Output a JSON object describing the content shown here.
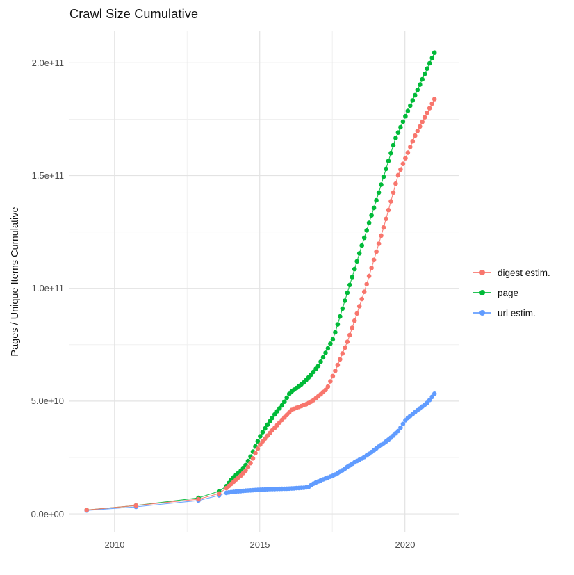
{
  "title": "Crawl Size Cumulative",
  "axes": {
    "y": {
      "title": "Pages / Unique Items Cumulative",
      "ticks": [
        {
          "label": "0.0e+00",
          "value_e9": 0
        },
        {
          "label": "5.0e+10",
          "value_e9": 50
        },
        {
          "label": "1.0e+11",
          "value_e9": 100
        },
        {
          "label": "1.5e+11",
          "value_e9": 150
        },
        {
          "label": "2.0e+11",
          "value_e9": 200
        }
      ],
      "minor_values_e9": [
        25,
        75,
        125,
        175
      ],
      "range_e9": [
        -8,
        214
      ]
    },
    "x": {
      "ticks": [
        {
          "label": "2010",
          "year": 2010
        },
        {
          "label": "2015",
          "year": 2015
        },
        {
          "label": "2020",
          "year": 2020
        }
      ],
      "minor_years": [
        2012.5,
        2017.5
      ],
      "range_year": [
        2008.45,
        2021.85
      ]
    }
  },
  "legend": {
    "items": [
      {
        "label": "digest estim.",
        "series": "digest-estim",
        "color": "#F8766D"
      },
      {
        "label": "page",
        "series": "page",
        "color": "#00BA38"
      },
      {
        "label": "url estim.",
        "series": "url-estim",
        "color": "#619CFF"
      }
    ]
  },
  "colors": {
    "digest": "#F8766D",
    "page": "#00BA38",
    "url": "#619CFF",
    "grid_major": "#e3e3e3",
    "grid_minor": "#f0f0f0",
    "tick_text": "#4d4d4d",
    "text": "#111111"
  },
  "chart_data": {
    "type": "scatter",
    "note": "cumulative pages / unique items; values in billions (1e9); dots monthly from 2013.85, knots are pixel-read anchor points",
    "x_unit": "year",
    "y_unit": "items (value x 1e9)",
    "monthly_step_years": 0.08333,
    "series": [
      {
        "name": "page",
        "color": "#00BA38",
        "z": 1,
        "dense_from_year": 2013.85,
        "knots": [
          [
            2009.04,
            1.7
          ],
          [
            2010.74,
            3.7
          ],
          [
            2012.89,
            7.1
          ],
          [
            2013.6,
            10.0
          ],
          [
            2013.85,
            12.3
          ],
          [
            2014.04,
            15.4
          ],
          [
            2014.21,
            17.6
          ],
          [
            2014.37,
            19.4
          ],
          [
            2014.54,
            22.0
          ],
          [
            2014.71,
            26.0
          ],
          [
            2014.87,
            30.5
          ],
          [
            2015.04,
            35.0
          ],
          [
            2015.29,
            40.0
          ],
          [
            2015.54,
            44.5
          ],
          [
            2015.79,
            48.5
          ],
          [
            2016.04,
            53.7
          ],
          [
            2016.29,
            56.0
          ],
          [
            2016.54,
            58.5
          ],
          [
            2016.79,
            62.0
          ],
          [
            2017.04,
            66.0
          ],
          [
            2017.29,
            72.0
          ],
          [
            2017.54,
            78.0
          ],
          [
            2018.04,
            99.0
          ],
          [
            2018.54,
            120.0
          ],
          [
            2019.04,
            140.0
          ],
          [
            2019.66,
            166.0
          ],
          [
            2020.04,
            177.0
          ],
          [
            2020.54,
            191.0
          ],
          [
            2021.05,
            205.5
          ]
        ]
      },
      {
        "name": "url estim.",
        "color": "#619CFF",
        "z": 2,
        "dense_from_year": 2013.85,
        "knots": [
          [
            2009.04,
            1.5
          ],
          [
            2010.74,
            3.1
          ],
          [
            2012.89,
            5.9
          ],
          [
            2013.6,
            8.2
          ],
          [
            2013.85,
            9.3
          ],
          [
            2014.04,
            9.7
          ],
          [
            2014.29,
            10.0
          ],
          [
            2014.54,
            10.3
          ],
          [
            2014.79,
            10.5
          ],
          [
            2015.04,
            10.7
          ],
          [
            2015.29,
            10.9
          ],
          [
            2015.54,
            11.0
          ],
          [
            2015.79,
            11.1
          ],
          [
            2016.04,
            11.2
          ],
          [
            2016.29,
            11.4
          ],
          [
            2016.54,
            11.6
          ],
          [
            2016.71,
            12.0
          ],
          [
            2016.79,
            13.0
          ],
          [
            2017.04,
            14.5
          ],
          [
            2017.29,
            15.8
          ],
          [
            2017.54,
            17.0
          ],
          [
            2017.79,
            18.8
          ],
          [
            2018.04,
            21.0
          ],
          [
            2018.29,
            23.0
          ],
          [
            2018.54,
            24.7
          ],
          [
            2018.79,
            26.8
          ],
          [
            2019.04,
            29.3
          ],
          [
            2019.29,
            31.5
          ],
          [
            2019.54,
            34.0
          ],
          [
            2019.79,
            37.0
          ],
          [
            2020.04,
            42.0
          ],
          [
            2020.29,
            44.5
          ],
          [
            2020.54,
            47.0
          ],
          [
            2020.79,
            49.5
          ],
          [
            2021.03,
            53.5
          ]
        ]
      },
      {
        "name": "digest estim.",
        "color": "#F8766D",
        "z": 3,
        "dense_from_year": 2013.85,
        "knots": [
          [
            2009.04,
            1.7
          ],
          [
            2010.74,
            3.7
          ],
          [
            2012.89,
            6.5
          ],
          [
            2013.6,
            9.0
          ],
          [
            2013.85,
            11.4
          ],
          [
            2014.04,
            13.5
          ],
          [
            2014.21,
            15.5
          ],
          [
            2014.37,
            17.2
          ],
          [
            2014.54,
            19.5
          ],
          [
            2014.71,
            23.0
          ],
          [
            2014.87,
            27.5
          ],
          [
            2015.04,
            31.2
          ],
          [
            2015.29,
            35.0
          ],
          [
            2015.54,
            38.5
          ],
          [
            2015.79,
            42.0
          ],
          [
            2015.96,
            44.2
          ],
          [
            2016.12,
            46.3
          ],
          [
            2016.37,
            47.5
          ],
          [
            2016.62,
            48.7
          ],
          [
            2016.84,
            50.3
          ],
          [
            2017.08,
            52.8
          ],
          [
            2017.32,
            55.6
          ],
          [
            2017.62,
            64.0
          ],
          [
            2018.04,
            77.0
          ],
          [
            2018.64,
            100.0
          ],
          [
            2019.29,
            128.0
          ],
          [
            2019.76,
            150.0
          ],
          [
            2020.36,
            168.0
          ],
          [
            2021.06,
            185.0
          ]
        ]
      }
    ]
  }
}
